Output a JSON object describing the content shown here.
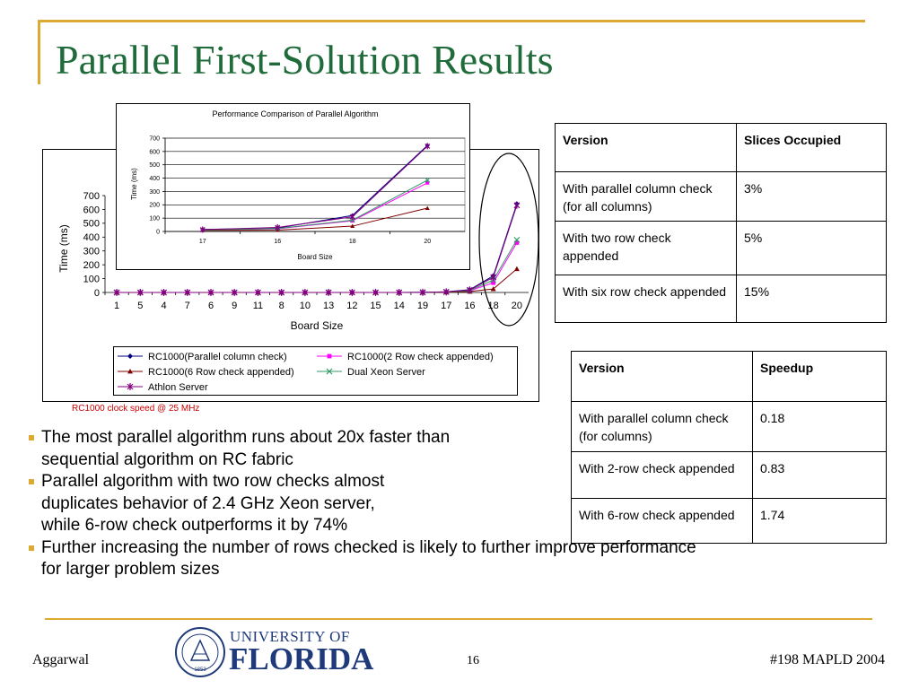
{
  "slide": {
    "title": "Parallel First-Solution Results",
    "note": "RC1000 clock speed @ 25 MHz",
    "colors": {
      "title": "#1f6b3a",
      "accent": "#dca933",
      "series_blue": "#000080",
      "series_magenta": "#ff00ff",
      "series_maroon": "#800000",
      "series_green": "#339966",
      "series_purple": "#800080"
    }
  },
  "chart_data": [
    {
      "type": "line",
      "x": [
        1,
        5,
        4,
        7,
        6,
        9,
        11,
        8,
        10,
        13,
        12,
        15,
        14,
        19,
        17,
        16,
        18,
        20
      ],
      "xlabel": "Board Size",
      "ylabel": "Time (ms)",
      "ylim": [
        0,
        700
      ],
      "yticks": [
        0,
        100,
        200,
        300,
        400,
        500,
        600,
        700
      ],
      "grid": false,
      "legend": "bottom",
      "series": [
        {
          "name": "RC1000(Parallel column check)",
          "color": "#000080",
          "marker": "diamond",
          "values": [
            0,
            0,
            0,
            0,
            0,
            0,
            0,
            0,
            0,
            0,
            0,
            0,
            0,
            1,
            5,
            20,
            120,
            640
          ]
        },
        {
          "name": "RC1000(2 Row  check appended)",
          "color": "#ff00ff",
          "marker": "square",
          "values": [
            0,
            0,
            0,
            0,
            0,
            0,
            0,
            0,
            0,
            0,
            0,
            0,
            0,
            1,
            3,
            12,
            70,
            360
          ]
        },
        {
          "name": "RC1000(6 Row  check appended)",
          "color": "#800000",
          "marker": "triangle",
          "values": [
            0,
            0,
            0,
            0,
            0,
            0,
            0,
            0,
            0,
            0,
            0,
            0,
            0,
            0,
            2,
            7,
            25,
            170
          ]
        },
        {
          "name": "Dual Xeon Server",
          "color": "#339966",
          "marker": "x",
          "values": [
            0,
            0,
            0,
            0,
            0,
            0,
            0,
            0,
            0,
            0,
            0,
            0,
            0,
            1,
            4,
            14,
            90,
            380
          ]
        },
        {
          "name": "Athlon Server",
          "color": "#800080",
          "marker": "asterisk",
          "values": [
            0,
            0,
            0,
            0,
            0,
            0,
            0,
            0,
            0,
            0,
            0,
            0,
            0,
            1,
            4,
            18,
            110,
            630
          ]
        }
      ]
    },
    {
      "type": "line",
      "title": "Performance Comparison of Parallel Algorithm",
      "x": [
        17,
        16,
        18,
        20
      ],
      "xlabel": "Board Size",
      "ylabel": "Time (ms)",
      "ylim": [
        0,
        700
      ],
      "yticks": [
        0,
        100,
        200,
        300,
        400,
        500,
        600,
        700
      ],
      "grid": true,
      "series": [
        {
          "color": "#000080",
          "marker": "diamond",
          "values": [
            15,
            25,
            120,
            645
          ]
        },
        {
          "color": "#ff00ff",
          "marker": "square",
          "values": [
            12,
            20,
            80,
            365
          ]
        },
        {
          "color": "#800000",
          "marker": "triangle",
          "values": [
            8,
            10,
            40,
            175
          ]
        },
        {
          "color": "#339966",
          "marker": "x",
          "values": [
            12,
            22,
            85,
            385
          ]
        },
        {
          "color": "#800080",
          "marker": "asterisk",
          "values": [
            14,
            30,
            110,
            640
          ]
        }
      ]
    }
  ],
  "table_slices": {
    "headers": [
      "Version",
      "Slices Occupied"
    ],
    "rows": [
      [
        "With parallel column check (for all columns)",
        "3%"
      ],
      [
        "With two row check appended",
        "5%"
      ],
      [
        "With six row check appended",
        "15%"
      ]
    ]
  },
  "table_speedup": {
    "headers": [
      "Version",
      "Speedup"
    ],
    "rows": [
      [
        "With parallel column check (for columns)",
        "0.18"
      ],
      [
        "With 2-row check appended",
        "0.83"
      ],
      [
        "With 6-row check appended",
        "1.74"
      ]
    ]
  },
  "bullets": [
    [
      "The most parallel algorithm runs about 20x faster than",
      "sequential algorithm on RC fabric"
    ],
    [
      "Parallel algorithm with two row checks almost",
      "duplicates behavior of 2.4 GHz Xeon server,",
      "while 6-row check outperforms it by 74%"
    ],
    [
      "Further increasing the number of rows checked is likely to further improve performance",
      "for larger problem sizes"
    ]
  ],
  "footer": {
    "author": "Aggarwal",
    "page": "16",
    "event": "#198 MAPLD 2004",
    "logo_line1": "UNIVERSITY OF",
    "logo_line2": "FLORIDA",
    "seal_text": "1853"
  }
}
